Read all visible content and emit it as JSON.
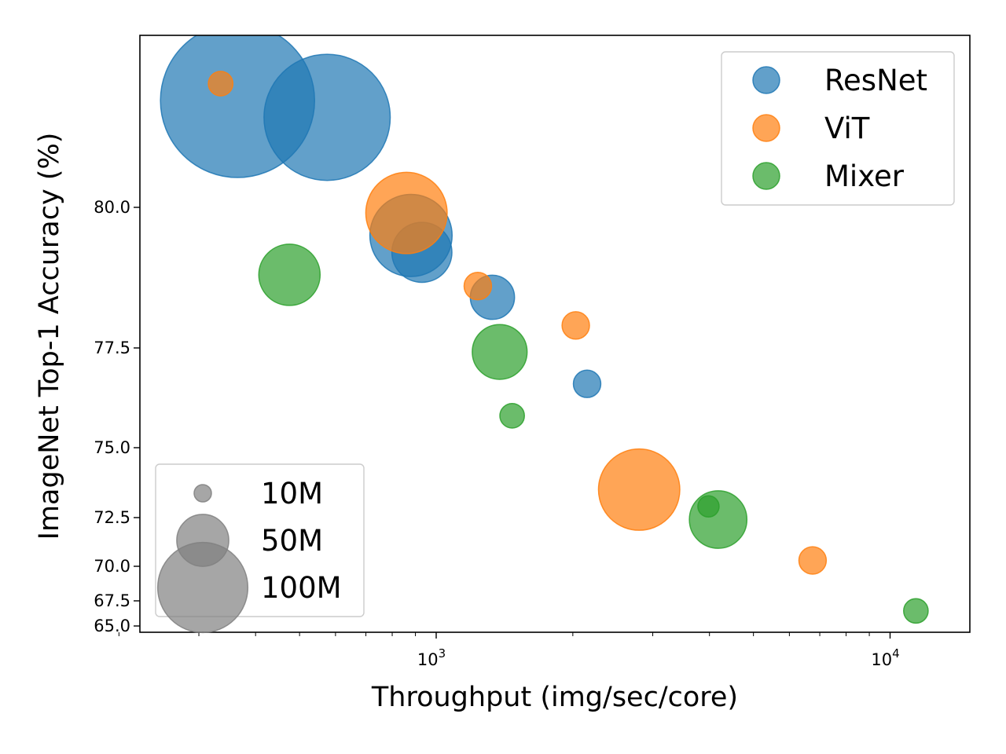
{
  "chart_data": {
    "type": "scatter",
    "xlabel": "Throughput (img/sec/core)",
    "ylabel": "ImageNet Top-1 Accuracy (%)",
    "x_scale": "log",
    "xlim": [
      200,
      15500
    ],
    "y_ticks": [
      {
        "label": "65.0"
      },
      {
        "label": "67.5"
      },
      {
        "label": "70.0"
      },
      {
        "label": "72.5"
      },
      {
        "label": "75.0"
      },
      {
        "label": "77.5"
      },
      {
        "label": "80.0"
      }
    ],
    "x_ticks": [
      {
        "value": 1000,
        "base": "10",
        "exp": "3"
      },
      {
        "value": 10000,
        "base": "10",
        "exp": "4"
      }
    ],
    "size_unit": "parameters (M)",
    "series": [
      {
        "name": "ResNet",
        "color": "#1f77b4",
        "points": [
          {
            "x": 365,
            "y": 81.9,
            "params": 158
          },
          {
            "x": 575,
            "y": 81.6,
            "params": 106
          },
          {
            "x": 880,
            "y": 79.5,
            "params": 45
          },
          {
            "x": 930,
            "y": 79.2,
            "params": 24
          },
          {
            "x": 1330,
            "y": 78.4,
            "params": 13
          },
          {
            "x": 2150,
            "y": 76.6,
            "params": 5
          }
        ]
      },
      {
        "name": "ViT",
        "color": "#ff7f0e",
        "points": [
          {
            "x": 335,
            "y": 82.2,
            "params": 4
          },
          {
            "x": 860,
            "y": 79.9,
            "params": 44
          },
          {
            "x": 1235,
            "y": 78.6,
            "params": 5
          },
          {
            "x": 2030,
            "y": 77.9,
            "params": 5
          },
          {
            "x": 2800,
            "y": 73.5,
            "params": 44
          },
          {
            "x": 6750,
            "y": 70.3,
            "params": 5
          }
        ]
      },
      {
        "name": "Mixer",
        "color": "#2ca02c",
        "points": [
          {
            "x": 475,
            "y": 78.8,
            "params": 25
          },
          {
            "x": 1380,
            "y": 77.4,
            "params": 20
          },
          {
            "x": 1470,
            "y": 75.8,
            "params": 4
          },
          {
            "x": 4180,
            "y": 72.4,
            "params": 22
          },
          {
            "x": 3980,
            "y": 72.9,
            "params": 3
          },
          {
            "x": 11400,
            "y": 66.5,
            "params": 4
          }
        ]
      }
    ],
    "size_legend": [
      {
        "label": "10M",
        "params": 2
      },
      {
        "label": "50M",
        "params": 18
      },
      {
        "label": "100M",
        "params": 54
      }
    ],
    "color_legend_position": "top-right",
    "size_legend_position": "bottom-left",
    "grid": false
  }
}
